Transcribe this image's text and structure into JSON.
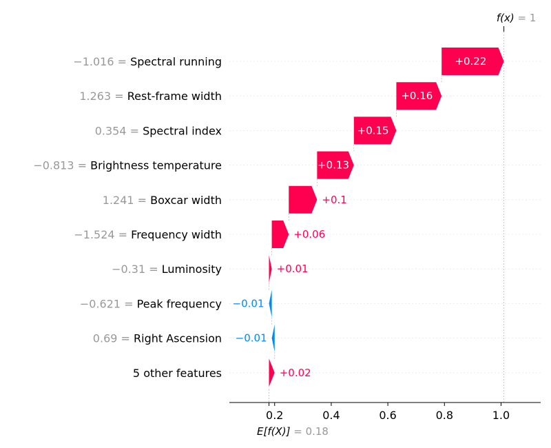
{
  "chart_data": {
    "type": "waterfall",
    "fx_label": "f(x)",
    "fx_value": "1",
    "base_label": "E[f(X)]",
    "base_value": "0.18",
    "base": 0.18,
    "xlim": [
      0.04,
      1.14
    ],
    "xticks": [
      0.2,
      0.4,
      0.6,
      0.8,
      1.0
    ],
    "xtick_labels": [
      "0.2",
      "0.4",
      "0.6",
      "0.8",
      "1.0"
    ],
    "features": [
      {
        "value": "−1.016",
        "name": "Spectral running",
        "contribution": 0.22,
        "label": "+0.22"
      },
      {
        "value": "1.263",
        "name": "Rest-frame width",
        "contribution": 0.16,
        "label": "+0.16"
      },
      {
        "value": "0.354",
        "name": "Spectral index",
        "contribution": 0.15,
        "label": "+0.15"
      },
      {
        "value": "−0.813",
        "name": "Brightness temperature",
        "contribution": 0.13,
        "label": "+0.13"
      },
      {
        "value": "1.241",
        "name": "Boxcar width",
        "contribution": 0.1,
        "label": "+0.1"
      },
      {
        "value": "−1.524",
        "name": "Frequency width",
        "contribution": 0.06,
        "label": "+0.06"
      },
      {
        "value": "−0.31",
        "name": "Luminosity",
        "contribution": 0.01,
        "label": "+0.01"
      },
      {
        "value": "−0.621",
        "name": "Peak frequency",
        "contribution": -0.01,
        "label": "−0.01"
      },
      {
        "value": "0.69",
        "name": "Right Ascension",
        "contribution": -0.01,
        "label": "−0.01"
      },
      {
        "value": "",
        "name": "5 other features",
        "contribution": 0.02,
        "label": "+0.02"
      }
    ],
    "colors": {
      "positive": "#ff0051",
      "negative": "#008bfb"
    }
  }
}
